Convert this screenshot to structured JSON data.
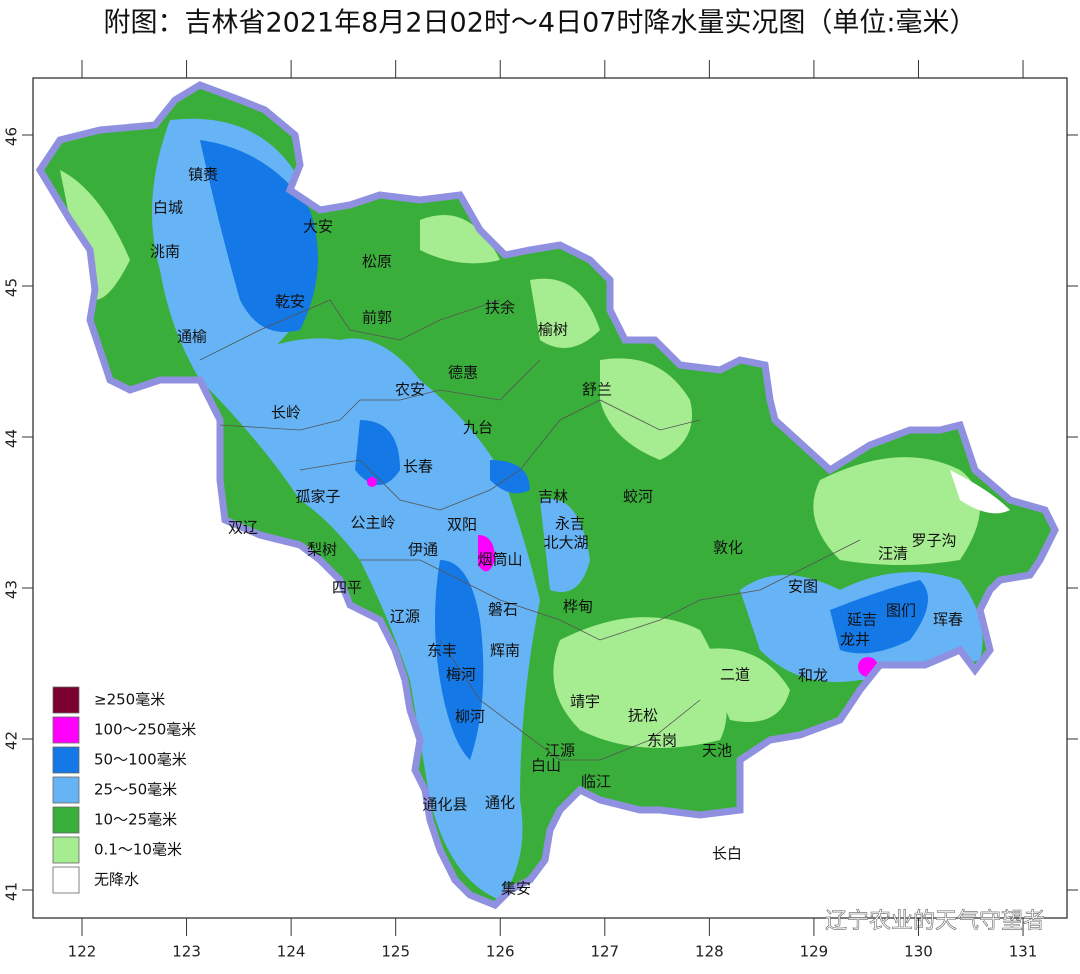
{
  "title": "附图：吉林省2021年8月2日02时～4日07时降水量实况图（单位:毫米）",
  "lon_ticks": [
    122,
    123,
    124,
    125,
    126,
    127,
    128,
    129,
    130,
    131
  ],
  "lat_ticks": [
    41,
    42,
    43,
    44,
    45,
    46
  ],
  "cities": [
    "镇赉",
    "白城",
    "洮南",
    "大安",
    "松原",
    "乾安",
    "通榆",
    "前郭",
    "扶余",
    "榆树",
    "农安",
    "德惠",
    "舒兰",
    "长岭",
    "九台",
    "长春",
    "孤家子",
    "吉林",
    "蛟河",
    "双辽",
    "公主岭",
    "双阳",
    "永吉",
    "北大湖",
    "梨树",
    "伊通",
    "烟筒山",
    "敦化",
    "汪清",
    "罗子沟",
    "四平",
    "磐石",
    "安图",
    "辽源",
    "桦甸",
    "延吉",
    "图们",
    "珲春",
    "龙井",
    "东丰",
    "梅河",
    "辉南",
    "二道",
    "和龙",
    "靖宇",
    "抚松",
    "柳河",
    "东岗",
    "江源",
    "天池",
    "白山",
    "临江",
    "通化县",
    "通化",
    "长白",
    "集安"
  ],
  "legend": [
    {
      "label": "≥250毫米",
      "color": "#7a0030"
    },
    {
      "label": "100～250毫米",
      "color": "#ff00ff"
    },
    {
      "label": "50～100毫米",
      "color": "#1478e6"
    },
    {
      "label": "25～50毫米",
      "color": "#66b4f5"
    },
    {
      "label": "10～25毫米",
      "color": "#3aae3a"
    },
    {
      "label": "0.1～10毫米",
      "color": "#a6ec90"
    },
    {
      "label": "无降水",
      "color": "#ffffff"
    }
  ],
  "watermark": "辽宁农业的天气守望者"
}
